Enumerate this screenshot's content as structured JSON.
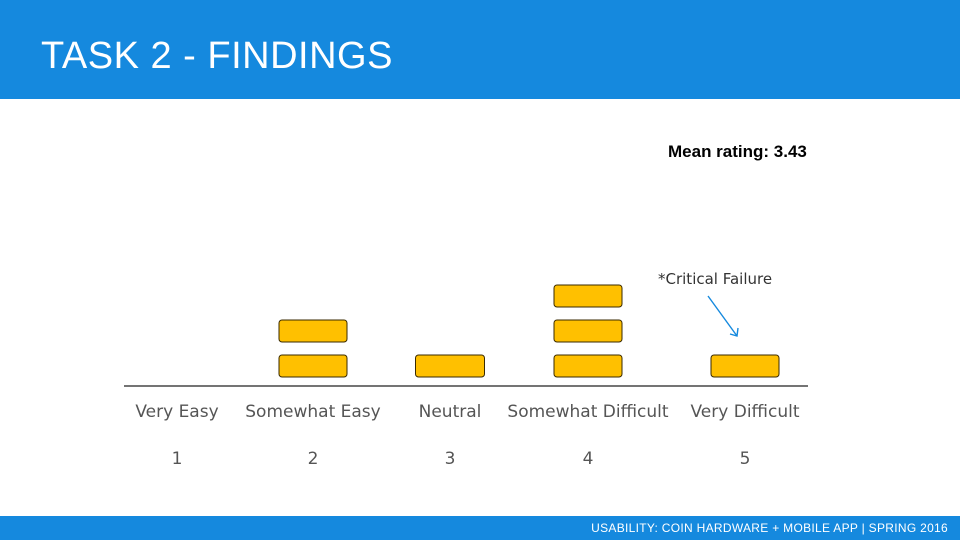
{
  "slide": {
    "title": "TASK 2 - FINDINGS",
    "mean_rating": "Mean rating: 3.43",
    "footer": "USABILITY: COIN HARDWARE + MOBILE APP | SPRING 2016"
  },
  "colors": {
    "header": "#1589de",
    "mark_fill": "#ffc000",
    "mark_stroke": "#3a2a00",
    "annotation_arrow": "#1589de"
  },
  "chart_data": {
    "type": "bar",
    "categories": [
      "Very Easy",
      "Somewhat Easy",
      "Neutral",
      "Somewhat Difficult",
      "Very Difficult"
    ],
    "ratings": [
      "1",
      "2",
      "3",
      "4",
      "5"
    ],
    "values": [
      0,
      2,
      1,
      3,
      1
    ],
    "annotations": [
      {
        "text": "*Critical Failure",
        "target_category": "Very Difficult"
      }
    ],
    "grid": false
  }
}
